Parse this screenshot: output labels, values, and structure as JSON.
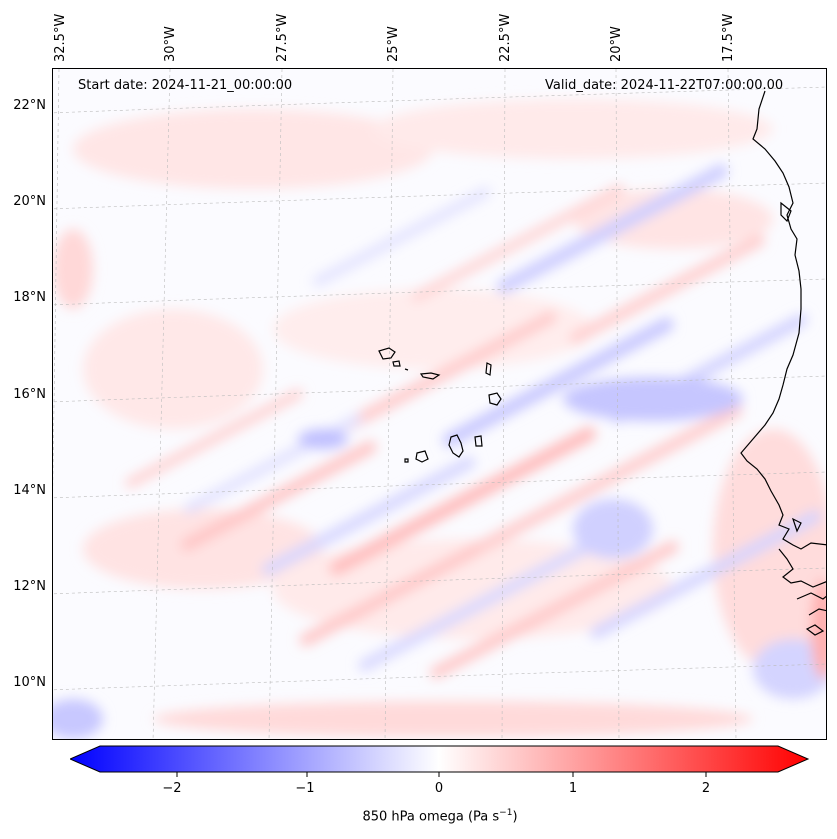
{
  "map": {
    "start_date_text": "Start date: 2024-11-21_00:00:00",
    "valid_date_text": "Valid_date: 2024-11-22T07:00:00.00",
    "lon_labels": [
      "32.5°W",
      "30°W",
      "27.5°W",
      "25°W",
      "22.5°W",
      "20°W",
      "17.5°W"
    ],
    "lat_labels": [
      "22°N",
      "20°N",
      "18°N",
      "16°N",
      "14°N",
      "12°N",
      "10°N"
    ],
    "colors": {
      "negative": "#0000ff",
      "positive": "#ff0000",
      "neutral": "#ffffff",
      "coastline": "#000000"
    }
  },
  "colorbar": {
    "label_main": "850 hPa omega (Pa s",
    "label_sup": "−1",
    "label_end": ")",
    "ticks": [
      "−2",
      "−1",
      "0",
      "1",
      "2"
    ],
    "range": [
      -2.75,
      2.5
    ]
  }
}
